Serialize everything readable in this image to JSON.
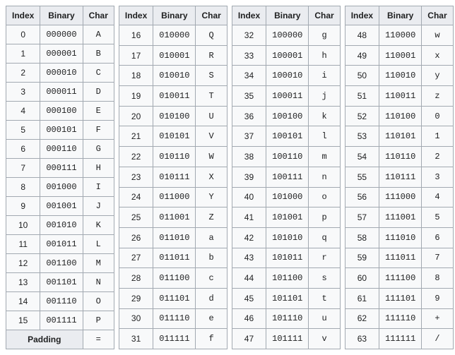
{
  "headers": {
    "index": "Index",
    "binary": "Binary",
    "char": "Char"
  },
  "padding": {
    "label": "Padding",
    "char": "="
  },
  "columns": [
    {
      "rows": [
        {
          "index": "0",
          "binary": "000000",
          "char": "A"
        },
        {
          "index": "1",
          "binary": "000001",
          "char": "B"
        },
        {
          "index": "2",
          "binary": "000010",
          "char": "C"
        },
        {
          "index": "3",
          "binary": "000011",
          "char": "D"
        },
        {
          "index": "4",
          "binary": "000100",
          "char": "E"
        },
        {
          "index": "5",
          "binary": "000101",
          "char": "F"
        },
        {
          "index": "6",
          "binary": "000110",
          "char": "G"
        },
        {
          "index": "7",
          "binary": "000111",
          "char": "H"
        },
        {
          "index": "8",
          "binary": "001000",
          "char": "I"
        },
        {
          "index": "9",
          "binary": "001001",
          "char": "J"
        },
        {
          "index": "10",
          "binary": "001010",
          "char": "K"
        },
        {
          "index": "11",
          "binary": "001011",
          "char": "L"
        },
        {
          "index": "12",
          "binary": "001100",
          "char": "M"
        },
        {
          "index": "13",
          "binary": "001101",
          "char": "N"
        },
        {
          "index": "14",
          "binary": "001110",
          "char": "O"
        },
        {
          "index": "15",
          "binary": "001111",
          "char": "P"
        }
      ]
    },
    {
      "rows": [
        {
          "index": "16",
          "binary": "010000",
          "char": "Q"
        },
        {
          "index": "17",
          "binary": "010001",
          "char": "R"
        },
        {
          "index": "18",
          "binary": "010010",
          "char": "S"
        },
        {
          "index": "19",
          "binary": "010011",
          "char": "T"
        },
        {
          "index": "20",
          "binary": "010100",
          "char": "U"
        },
        {
          "index": "21",
          "binary": "010101",
          "char": "V"
        },
        {
          "index": "22",
          "binary": "010110",
          "char": "W"
        },
        {
          "index": "23",
          "binary": "010111",
          "char": "X"
        },
        {
          "index": "24",
          "binary": "011000",
          "char": "Y"
        },
        {
          "index": "25",
          "binary": "011001",
          "char": "Z"
        },
        {
          "index": "26",
          "binary": "011010",
          "char": "a"
        },
        {
          "index": "27",
          "binary": "011011",
          "char": "b"
        },
        {
          "index": "28",
          "binary": "011100",
          "char": "c"
        },
        {
          "index": "29",
          "binary": "011101",
          "char": "d"
        },
        {
          "index": "30",
          "binary": "011110",
          "char": "e"
        },
        {
          "index": "31",
          "binary": "011111",
          "char": "f"
        }
      ]
    },
    {
      "rows": [
        {
          "index": "32",
          "binary": "100000",
          "char": "g"
        },
        {
          "index": "33",
          "binary": "100001",
          "char": "h"
        },
        {
          "index": "34",
          "binary": "100010",
          "char": "i"
        },
        {
          "index": "35",
          "binary": "100011",
          "char": "j"
        },
        {
          "index": "36",
          "binary": "100100",
          "char": "k"
        },
        {
          "index": "37",
          "binary": "100101",
          "char": "l"
        },
        {
          "index": "38",
          "binary": "100110",
          "char": "m"
        },
        {
          "index": "39",
          "binary": "100111",
          "char": "n"
        },
        {
          "index": "40",
          "binary": "101000",
          "char": "o"
        },
        {
          "index": "41",
          "binary": "101001",
          "char": "p"
        },
        {
          "index": "42",
          "binary": "101010",
          "char": "q"
        },
        {
          "index": "43",
          "binary": "101011",
          "char": "r"
        },
        {
          "index": "44",
          "binary": "101100",
          "char": "s"
        },
        {
          "index": "45",
          "binary": "101101",
          "char": "t"
        },
        {
          "index": "46",
          "binary": "101110",
          "char": "u"
        },
        {
          "index": "47",
          "binary": "101111",
          "char": "v"
        }
      ]
    },
    {
      "rows": [
        {
          "index": "48",
          "binary": "110000",
          "char": "w"
        },
        {
          "index": "49",
          "binary": "110001",
          "char": "x"
        },
        {
          "index": "50",
          "binary": "110010",
          "char": "y"
        },
        {
          "index": "51",
          "binary": "110011",
          "char": "z"
        },
        {
          "index": "52",
          "binary": "110100",
          "char": "0"
        },
        {
          "index": "53",
          "binary": "110101",
          "char": "1"
        },
        {
          "index": "54",
          "binary": "110110",
          "char": "2"
        },
        {
          "index": "55",
          "binary": "110111",
          "char": "3"
        },
        {
          "index": "56",
          "binary": "111000",
          "char": "4"
        },
        {
          "index": "57",
          "binary": "111001",
          "char": "5"
        },
        {
          "index": "58",
          "binary": "111010",
          "char": "6"
        },
        {
          "index": "59",
          "binary": "111011",
          "char": "7"
        },
        {
          "index": "60",
          "binary": "111100",
          "char": "8"
        },
        {
          "index": "61",
          "binary": "111101",
          "char": "9"
        },
        {
          "index": "62",
          "binary": "111110",
          "char": "+"
        },
        {
          "index": "63",
          "binary": "111111",
          "char": "/"
        }
      ]
    }
  ]
}
